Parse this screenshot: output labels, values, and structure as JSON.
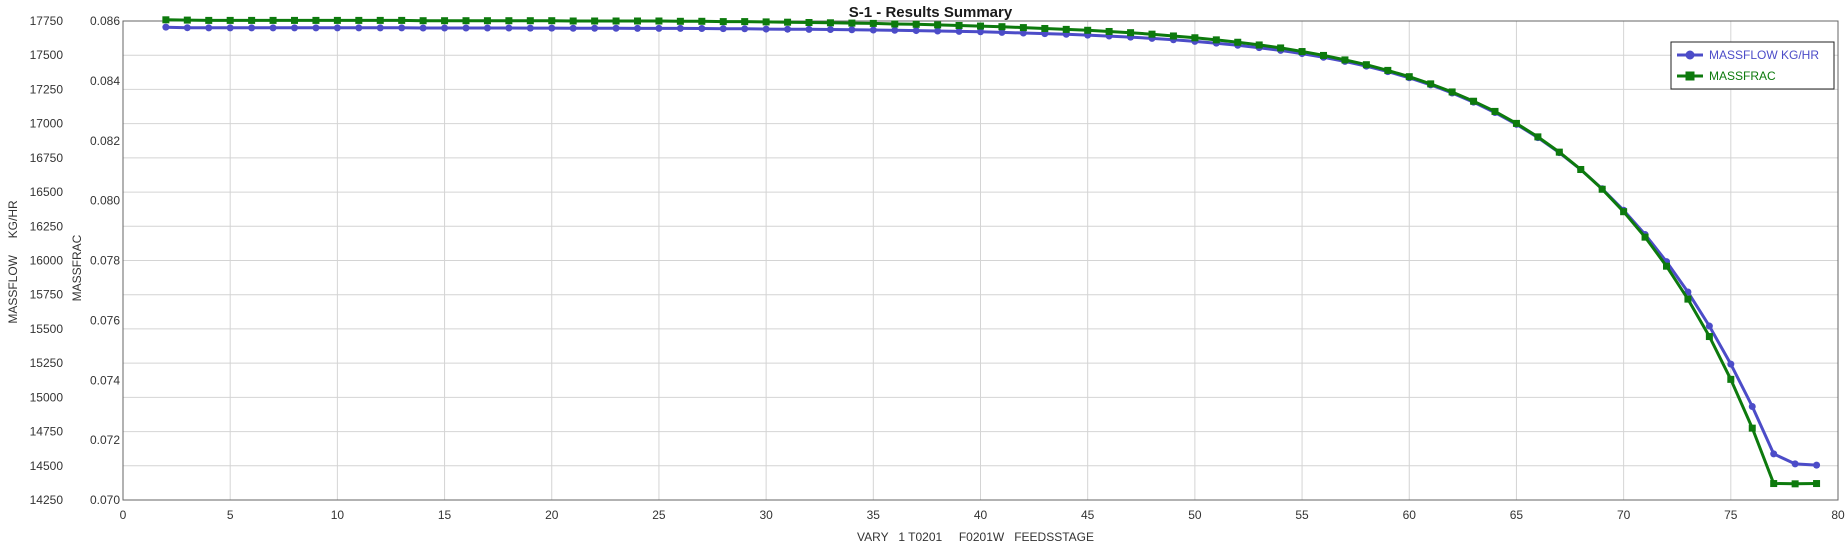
{
  "chart_data": {
    "type": "line",
    "title": "S-1 - Results Summary",
    "xlabel": "VARY   1 T0201     F0201W   FEEDSSTAGE",
    "ylabel_left": "MASSFLOW     KG/HR",
    "ylabel_right": "MASSFRAC",
    "xlim": [
      0,
      80
    ],
    "ylim_left": [
      14250,
      17750
    ],
    "ylim_right": [
      0.07,
      0.086
    ],
    "x_ticks": [
      "0",
      "5",
      "10",
      "15",
      "20",
      "25",
      "30",
      "35",
      "40",
      "45",
      "50",
      "55",
      "60",
      "65",
      "70",
      "75",
      "80"
    ],
    "y_ticks_left": [
      "14250",
      "14500",
      "14750",
      "15000",
      "15250",
      "15500",
      "15750",
      "16000",
      "16250",
      "16500",
      "16750",
      "17000",
      "17250",
      "17500",
      "17750"
    ],
    "y_ticks_right": [
      "0.070",
      "0.072",
      "0.074",
      "0.076",
      "0.078",
      "0.080",
      "0.082",
      "0.084",
      "0.086"
    ],
    "grid": true,
    "legend_position": "top-right",
    "x": [
      2,
      3,
      4,
      5,
      6,
      7,
      8,
      9,
      10,
      11,
      12,
      13,
      14,
      15,
      16,
      17,
      18,
      19,
      20,
      21,
      22,
      23,
      24,
      25,
      26,
      27,
      28,
      29,
      30,
      31,
      32,
      33,
      34,
      35,
      36,
      37,
      38,
      39,
      40,
      41,
      42,
      43,
      44,
      45,
      46,
      47,
      48,
      49,
      50,
      51,
      52,
      53,
      54,
      55,
      56,
      57,
      58,
      59,
      60,
      61,
      62,
      63,
      64,
      65,
      66,
      67,
      68,
      69,
      70,
      71,
      72,
      73,
      74,
      75,
      76,
      77,
      78,
      79
    ],
    "series": [
      {
        "name": "MASSFLOW     KG/HR",
        "axis": "left",
        "color": "#4c4cc8",
        "marker": "circle",
        "values": [
          17705,
          17701,
          17700,
          17700,
          17700,
          17700,
          17700,
          17700,
          17700,
          17700,
          17700,
          17700,
          17699,
          17699,
          17699,
          17699,
          17699,
          17698,
          17698,
          17697,
          17697,
          17697,
          17696,
          17696,
          17696,
          17695,
          17694,
          17693,
          17691,
          17690,
          17689,
          17688,
          17686,
          17684,
          17682,
          17680,
          17677,
          17674,
          17671,
          17667,
          17662,
          17658,
          17653,
          17647,
          17640,
          17632,
          17623,
          17613,
          17601,
          17588,
          17573,
          17555,
          17535,
          17512,
          17485,
          17455,
          17420,
          17380,
          17335,
          17283,
          17224,
          17157,
          17081,
          16995,
          16898,
          16788,
          16664,
          16524,
          16367,
          16190,
          15992,
          15770,
          15521,
          15243,
          14933,
          14587,
          14514,
          14505
        ]
      },
      {
        "name": "MASSFRAC",
        "axis": "right",
        "color": "#0d7a0d",
        "marker": "square",
        "values": [
          0.08604,
          0.08603,
          0.08602,
          0.08602,
          0.08602,
          0.08602,
          0.08602,
          0.08602,
          0.08602,
          0.08602,
          0.08602,
          0.08602,
          0.08601,
          0.08601,
          0.08601,
          0.08601,
          0.08601,
          0.08601,
          0.08601,
          0.086,
          0.086,
          0.086,
          0.086,
          0.086,
          0.08599,
          0.08599,
          0.08598,
          0.08598,
          0.08597,
          0.08596,
          0.08595,
          0.08594,
          0.08593,
          0.08592,
          0.0859,
          0.08589,
          0.08587,
          0.08585,
          0.08583,
          0.08581,
          0.08578,
          0.08575,
          0.08572,
          0.08569,
          0.08565,
          0.08561,
          0.08556,
          0.0855,
          0.08544,
          0.08537,
          0.08529,
          0.0852,
          0.0851,
          0.08498,
          0.08485,
          0.0847,
          0.08454,
          0.08435,
          0.08414,
          0.0839,
          0.08363,
          0.08332,
          0.08298,
          0.08258,
          0.08213,
          0.08162,
          0.08104,
          0.08038,
          0.07963,
          0.07878,
          0.07781,
          0.07671,
          0.07546,
          0.07403,
          0.0724,
          0.07055,
          0.07054,
          0.07055
        ]
      }
    ]
  }
}
